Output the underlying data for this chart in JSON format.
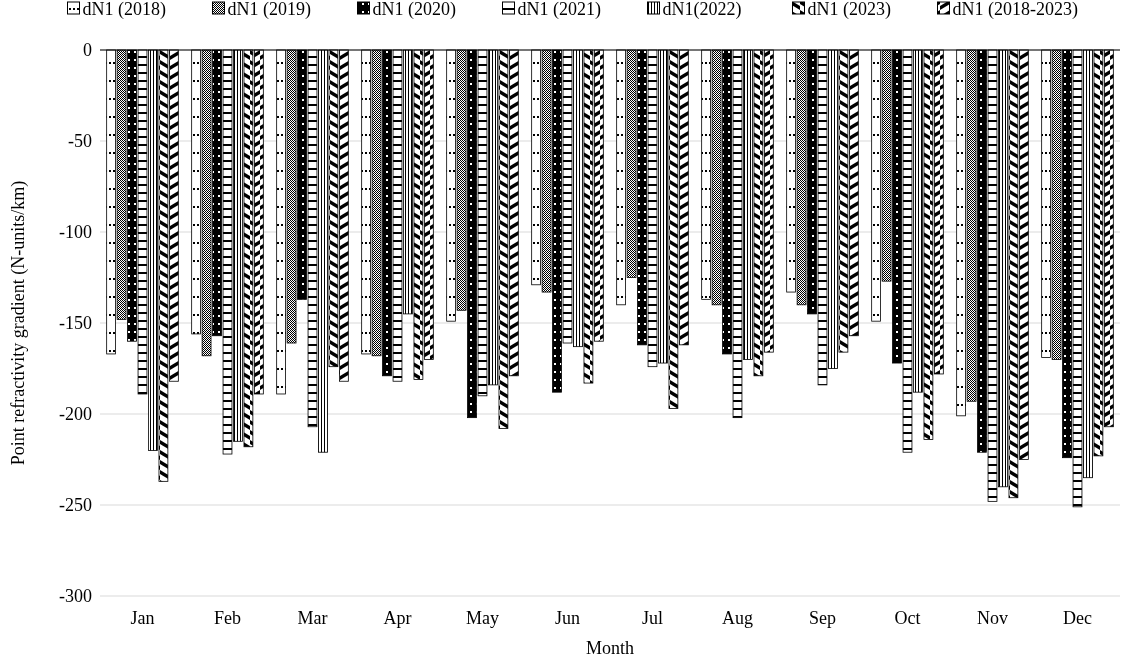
{
  "chart_data": {
    "type": "bar",
    "xlabel": "Month",
    "ylabel": "Point refractivity gradient (N-units/km)",
    "categories": [
      "Jan",
      "Feb",
      "Mar",
      "Apr",
      "May",
      "Jun",
      "Jul",
      "Aug",
      "Sep",
      "Oct",
      "Nov",
      "Dec"
    ],
    "series": [
      {
        "name": "dN1 (2018)",
        "color": "#000000",
        "values": [
          -167,
          -156,
          -189,
          -167,
          -149,
          -129,
          -140,
          -137,
          -133,
          -149,
          -201,
          -169
        ]
      },
      {
        "name": "dN1 (2019)",
        "color": "#000000",
        "values": [
          -148,
          -168,
          -161,
          -168,
          -143,
          -133,
          -125,
          -140,
          -140,
          -127,
          -193,
          -170
        ]
      },
      {
        "name": "dN1 (2020)",
        "color": "#000000",
        "values": [
          -160,
          -157,
          -137,
          -179,
          -202,
          -188,
          -162,
          -167,
          -145,
          -172,
          -221,
          -224
        ]
      },
      {
        "name": "dN1 (2021)",
        "color": "#000000",
        "values": [
          -189,
          -222,
          -207,
          -182,
          -190,
          -161,
          -174,
          -202,
          -184,
          -221,
          -248,
          -251
        ]
      },
      {
        "name": "dN1(2022)",
        "color": "#000000",
        "values": [
          -220,
          -215,
          -221,
          -145,
          -184,
          -163,
          -172,
          -170,
          -175,
          -188,
          -240,
          -235
        ]
      },
      {
        "name": "dN1 (2023)",
        "color": "#000000",
        "values": [
          -237,
          -218,
          -174,
          -181,
          -208,
          -183,
          -197,
          -179,
          -166,
          -214,
          -246,
          -223
        ]
      },
      {
        "name": "dN1 (2018-2023)",
        "color": "#000000",
        "values": [
          -182,
          -189,
          -182,
          -170,
          -179,
          -160,
          -162,
          -166,
          -157,
          -178,
          -225,
          -207
        ]
      }
    ],
    "ylim": [
      -300,
      0
    ],
    "yticks": [
      -300,
      -250,
      -200,
      -150,
      -100,
      -50,
      0
    ],
    "grid": "y",
    "legend": "top"
  }
}
